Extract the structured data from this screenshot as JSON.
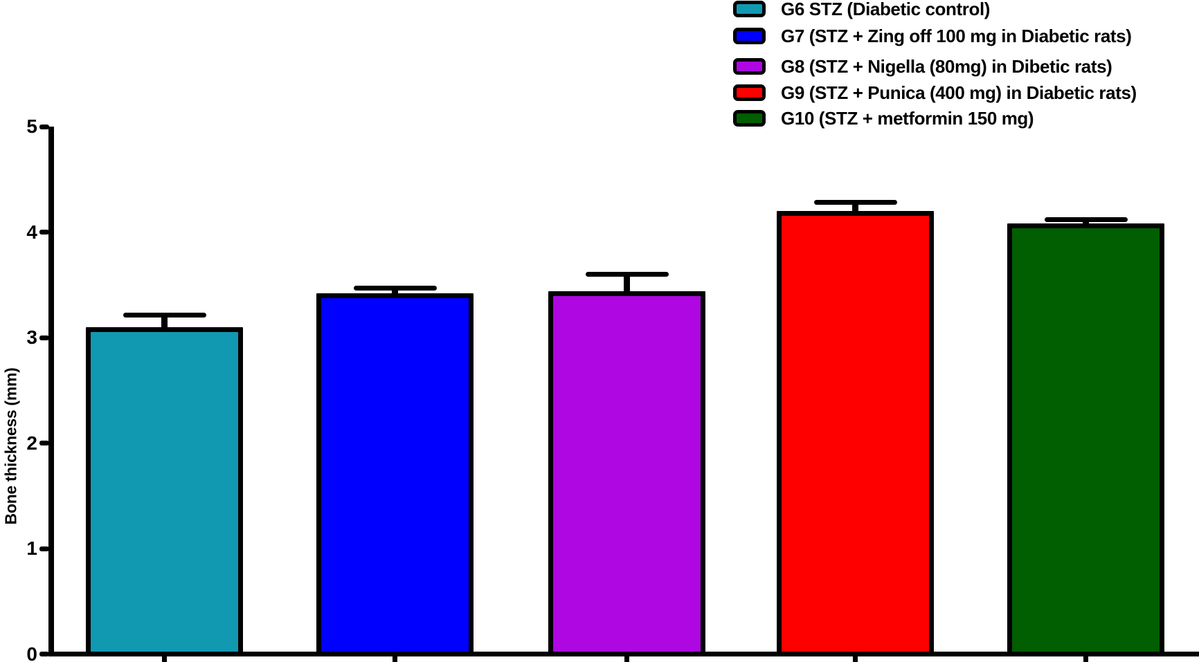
{
  "chart_data": {
    "type": "bar",
    "title": "",
    "xlabel": "",
    "ylabel": "Bone thickness (mm)",
    "ylim": [
      0,
      5
    ],
    "yticks": [
      0,
      1,
      2,
      3,
      4,
      5
    ],
    "grid": false,
    "legend_position": "top-right",
    "error_bars": "upper, capped, black",
    "bar_border_color": "#000000",
    "background_color": "#ffffff",
    "categories": [
      "G6",
      "G7",
      "G8",
      "G9",
      "G10"
    ],
    "values": [
      3.1,
      3.42,
      3.44,
      4.2,
      4.08
    ],
    "errors": [
      0.11,
      0.05,
      0.16,
      0.08,
      0.04
    ],
    "bar_colors": [
      "#1199B2",
      "#0000FF",
      "#AE07E2",
      "#FF0000",
      "#015E01"
    ],
    "legend": [
      {
        "label": "G6 STZ (Diabetic control)",
        "color": "#1199B2"
      },
      {
        "label": "G7 (STZ + Zing off 100 mg in Diabetic rats)",
        "color": "#0000FF"
      },
      {
        "label": "G8 (STZ + Nigella (80mg) in Dibetic rats)",
        "color": "#AE07E2"
      },
      {
        "label": "G9 (STZ + Punica (400 mg) in Diabetic rats)",
        "color": "#FF0000"
      },
      {
        "label": "G10 (STZ + metformin 150 mg)",
        "color": "#015E01"
      }
    ]
  }
}
